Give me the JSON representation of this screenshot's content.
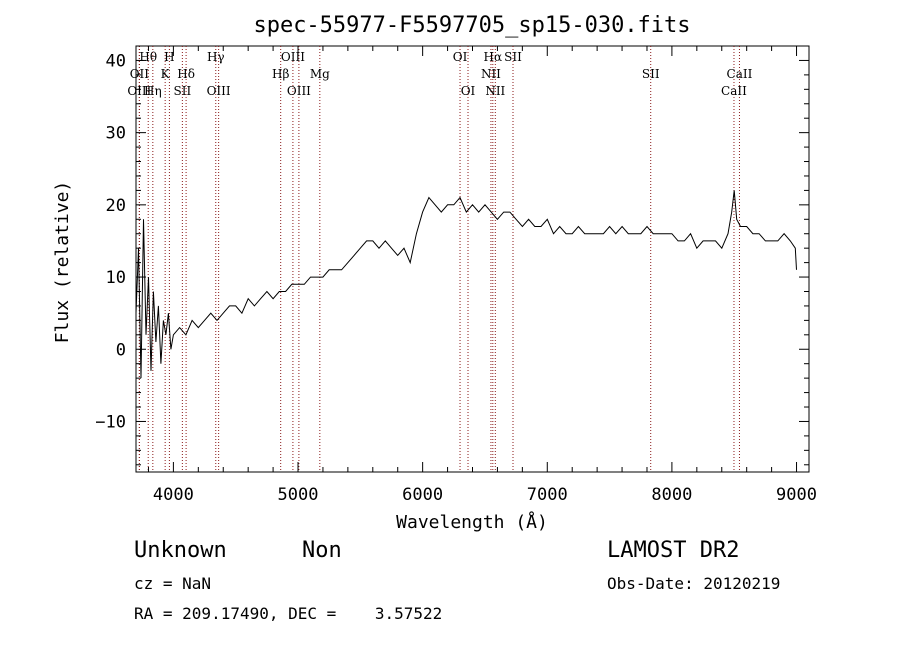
{
  "chart_data": {
    "type": "line",
    "title": "spec-55977-F5597705_sp15-030.fits",
    "xlabel": "Wavelength (Å)",
    "ylabel": "Flux (relative)",
    "xlim": [
      3700,
      9100
    ],
    "ylim": [
      -17,
      42
    ],
    "x_ticks": [
      4000,
      5000,
      6000,
      7000,
      8000,
      9000
    ],
    "y_ticks": [
      -10,
      0,
      10,
      20,
      30,
      40
    ],
    "grid": false,
    "series": [
      {
        "x": [
          3700,
          3720,
          3740,
          3760,
          3780,
          3800,
          3820,
          3840,
          3860,
          3880,
          3900,
          3920,
          3940,
          3960,
          3980,
          4000,
          4050,
          4100,
          4150,
          4200,
          4250,
          4300,
          4350,
          4400,
          4450,
          4500,
          4550,
          4600,
          4650,
          4700,
          4750,
          4800,
          4850,
          4900,
          4950,
          5000,
          5050,
          5100,
          5150,
          5200,
          5250,
          5300,
          5350,
          5400,
          5450,
          5500,
          5550,
          5600,
          5650,
          5700,
          5750,
          5800,
          5850,
          5900,
          5950,
          6000,
          6050,
          6100,
          6150,
          6200,
          6250,
          6300,
          6350,
          6400,
          6450,
          6500,
          6550,
          6600,
          6650,
          6700,
          6750,
          6800,
          6850,
          6900,
          6950,
          7000,
          7050,
          7100,
          7150,
          7200,
          7250,
          7300,
          7350,
          7400,
          7450,
          7500,
          7550,
          7600,
          7650,
          7700,
          7750,
          7800,
          7850,
          7900,
          7950,
          8000,
          8050,
          8100,
          8150,
          8200,
          8250,
          8300,
          8350,
          8400,
          8450,
          8480,
          8500,
          8520,
          8550,
          8600,
          8650,
          8700,
          8750,
          8800,
          8850,
          8900,
          8950,
          8990,
          9000
        ],
        "y": [
          5,
          14,
          -4,
          18,
          2,
          10,
          -3,
          8,
          1,
          6,
          -2,
          4,
          2,
          5,
          0,
          2,
          3,
          2,
          4,
          3,
          4,
          5,
          4,
          5,
          6,
          6,
          5,
          7,
          6,
          7,
          8,
          7,
          8,
          8,
          9,
          9,
          9,
          10,
          10,
          10,
          11,
          11,
          11,
          12,
          13,
          14,
          15,
          15,
          14,
          15,
          14,
          13,
          14,
          12,
          16,
          19,
          21,
          20,
          19,
          20,
          20,
          21,
          19,
          20,
          19,
          20,
          19,
          18,
          19,
          19,
          18,
          17,
          18,
          17,
          17,
          18,
          16,
          17,
          16,
          16,
          17,
          16,
          16,
          16,
          16,
          17,
          16,
          17,
          16,
          16,
          16,
          17,
          16,
          16,
          16,
          16,
          15,
          15,
          16,
          14,
          15,
          15,
          15,
          14,
          16,
          19,
          22,
          18,
          17,
          17,
          16,
          16,
          15,
          15,
          15,
          16,
          15,
          14,
          11
        ]
      }
    ],
    "lines": [
      {
        "label": "Hθ",
        "x": 3798,
        "row": 0
      },
      {
        "label": "OII",
        "x": 3727,
        "row": 1
      },
      {
        "label": "OIII",
        "x": 3727,
        "row": 2
      },
      {
        "label": "Hη",
        "x": 3835,
        "row": 2
      },
      {
        "label": "H",
        "x": 3968,
        "row": 0
      },
      {
        "label": "K",
        "x": 3934,
        "row": 1
      },
      {
        "label": "Hδ",
        "x": 4102,
        "row": 1
      },
      {
        "label": "SII",
        "x": 4072,
        "row": 2
      },
      {
        "label": "Hγ",
        "x": 4340,
        "row": 0
      },
      {
        "label": "OIII",
        "x": 4363,
        "row": 2
      },
      {
        "label": "OIII",
        "x": 4959,
        "row": 0
      },
      {
        "label": "Hβ",
        "x": 4861,
        "row": 1
      },
      {
        "label": "OIII",
        "x": 5007,
        "row": 2
      },
      {
        "label": "Mg",
        "x": 5175,
        "row": 1
      },
      {
        "label": "OI",
        "x": 6300,
        "row": 0
      },
      {
        "label": "OI",
        "x": 6364,
        "row": 2
      },
      {
        "label": "Hα",
        "x": 6563,
        "row": 0
      },
      {
        "label": "NII",
        "x": 6548,
        "row": 1
      },
      {
        "label": "NII",
        "x": 6583,
        "row": 2
      },
      {
        "label": "SII",
        "x": 6725,
        "row": 0
      },
      {
        "label": "SII",
        "x": 7830,
        "row": 1
      },
      {
        "label": "CaII",
        "x": 8542,
        "row": 1
      },
      {
        "label": "CaII",
        "x": 8498,
        "row": 2
      }
    ]
  },
  "footer": {
    "object_class": "Unknown",
    "subclass": "Non",
    "survey": "LAMOST DR2",
    "cz": "cz = NaN",
    "obs_date": "Obs-Date: 20120219",
    "coords": "RA = 209.17490, DEC =    3.57522"
  }
}
